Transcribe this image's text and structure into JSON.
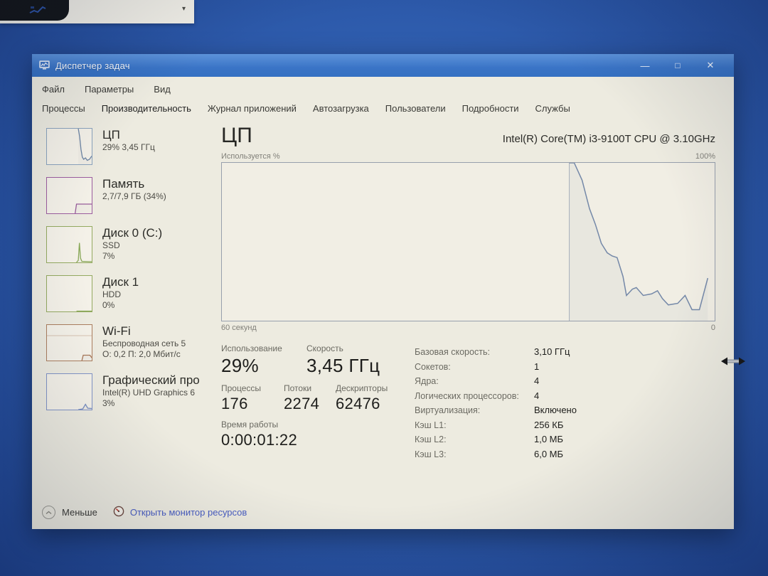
{
  "top_panel": {
    "dropdown_arrow": "▾"
  },
  "window": {
    "title": "Диспетчер задач",
    "controls": {
      "minimize": "—",
      "maximize": "□",
      "close": "✕"
    },
    "menu": {
      "items": [
        {
          "label": "Файл"
        },
        {
          "label": "Параметры"
        },
        {
          "label": "Вид"
        }
      ]
    },
    "tabs": {
      "items": [
        {
          "label": "Процессы",
          "active": false
        },
        {
          "label": "Производительность",
          "active": true
        },
        {
          "label": "Журнал приложений",
          "active": false
        },
        {
          "label": "Автозагрузка",
          "active": false
        },
        {
          "label": "Пользователи",
          "active": false
        },
        {
          "label": "Подробности",
          "active": false
        },
        {
          "label": "Службы",
          "active": false
        }
      ]
    },
    "sidebar": {
      "items": [
        {
          "id": "cpu",
          "title": "ЦП",
          "line2": "29% 3,45 ГГц",
          "line3": "",
          "border_color": "#8ba3bd",
          "line_color": "#5f7a9d",
          "spark": [
            [
              0.7,
              100
            ],
            [
              0.73,
              78
            ],
            [
              0.76,
              42
            ],
            [
              0.79,
              20
            ],
            [
              0.82,
              14
            ],
            [
              0.86,
              18
            ],
            [
              0.9,
              11
            ],
            [
              0.95,
              14
            ],
            [
              1.0,
              23
            ]
          ]
        },
        {
          "id": "memory",
          "title": "Память",
          "line2": "2,7/7,9 ГБ (34%)",
          "line3": "",
          "border_color": "#9c5d9f",
          "line_color": "#8e4d92",
          "spark": [
            [
              0.63,
              0
            ],
            [
              0.66,
              26
            ],
            [
              1.0,
              26
            ]
          ]
        },
        {
          "id": "disk0",
          "title": "Диск 0 (C:)",
          "line2": "SSD",
          "line3": "7%",
          "border_color": "#94aa60",
          "line_color": "#7fa24a",
          "spark": [
            [
              0.66,
              0
            ],
            [
              0.7,
              6
            ],
            [
              0.725,
              55
            ],
            [
              0.75,
              12
            ],
            [
              0.78,
              3
            ],
            [
              1.0,
              2
            ]
          ]
        },
        {
          "id": "disk1",
          "title": "Диск 1",
          "line2": "HDD",
          "line3": "0%",
          "border_color": "#94aa60",
          "line_color": "#7fa24a",
          "spark": [
            [
              0.66,
              1
            ],
            [
              1.0,
              1
            ]
          ]
        },
        {
          "id": "wifi",
          "title": "Wi-Fi",
          "line2": "Беспроводная сеть 5",
          "line3": "О: 0,2 П: 2,0 Мбит/с",
          "border_color": "#ab7e5e",
          "line_color": "#a06a48",
          "guide_pct": 70,
          "spark": [
            [
              0.78,
              0
            ],
            [
              0.81,
              15
            ],
            [
              0.96,
              15
            ],
            [
              1.0,
              8
            ]
          ]
        },
        {
          "id": "gpu",
          "title": "Графический про",
          "line2": "Intel(R) UHD Graphics 6",
          "line3": "3%",
          "border_color": "#8194c6",
          "line_color": "#6c84bd",
          "spark": [
            [
              0.7,
              0
            ],
            [
              0.8,
              2
            ],
            [
              0.86,
              15
            ],
            [
              0.91,
              4
            ],
            [
              1.0,
              3
            ]
          ]
        }
      ]
    },
    "main": {
      "title": "ЦП",
      "cpu_name": "Intel(R) Core(TM) i3-9100T CPU @ 3.10GHz",
      "axis_caption": "Используется %",
      "axis_max": "100%",
      "axis_min": "0",
      "axis_time": "60 секунд",
      "stats": {
        "blocks": [
          {
            "label": "Использование",
            "value": "29%"
          },
          {
            "label": "Скорость",
            "value": "3,45 ГГц"
          },
          {
            "label": "Процессы",
            "value": "176"
          },
          {
            "label": "Потоки",
            "value": "2274"
          },
          {
            "label": "Дескрипторы",
            "value": "62476"
          },
          {
            "label": "Время работы",
            "value": "0:00:01:22"
          }
        ],
        "details": [
          {
            "label": "Базовая скорость:",
            "value": "3,10 ГГц"
          },
          {
            "label": "Сокетов:",
            "value": "1"
          },
          {
            "label": "Ядра:",
            "value": "4"
          },
          {
            "label": "Логических процессоров:",
            "value": "4"
          },
          {
            "label": "Виртуализация:",
            "value": "Включено"
          },
          {
            "label": "Кэш L1:",
            "value": "256 КБ"
          },
          {
            "label": "Кэш L2:",
            "value": "1,0 МБ"
          },
          {
            "label": "Кэш L3:",
            "value": "6,0 МБ"
          }
        ]
      }
    },
    "footer": {
      "less_label": "Меньше",
      "resmon_label": "Открыть монитор ресурсов",
      "link_color": "#4a5ec2"
    }
  },
  "chart_data": {
    "type": "line",
    "title": "ЦП",
    "subtitle": "Intel(R) Core(TM) i3-9100T CPU @ 3.10GHz",
    "ylabel": "Используется %",
    "ylim": [
      0,
      100
    ],
    "x_window_label": "60 секунд",
    "grid": false,
    "legend": "none",
    "line_color": "#7488a8",
    "data_start_fraction": 0.705,
    "points_fraction_percent": [
      [
        0.705,
        100
      ],
      [
        0.715,
        100
      ],
      [
        0.731,
        89
      ],
      [
        0.746,
        71
      ],
      [
        0.758,
        61
      ],
      [
        0.77,
        49
      ],
      [
        0.782,
        43
      ],
      [
        0.792,
        41
      ],
      [
        0.802,
        40
      ],
      [
        0.814,
        28
      ],
      [
        0.821,
        16
      ],
      [
        0.833,
        20
      ],
      [
        0.841,
        21
      ],
      [
        0.855,
        16
      ],
      [
        0.872,
        17
      ],
      [
        0.884,
        19
      ],
      [
        0.894,
        14
      ],
      [
        0.906,
        10
      ],
      [
        0.925,
        11
      ],
      [
        0.94,
        16
      ],
      [
        0.954,
        7
      ],
      [
        0.969,
        7
      ],
      [
        0.986,
        27
      ]
    ]
  }
}
